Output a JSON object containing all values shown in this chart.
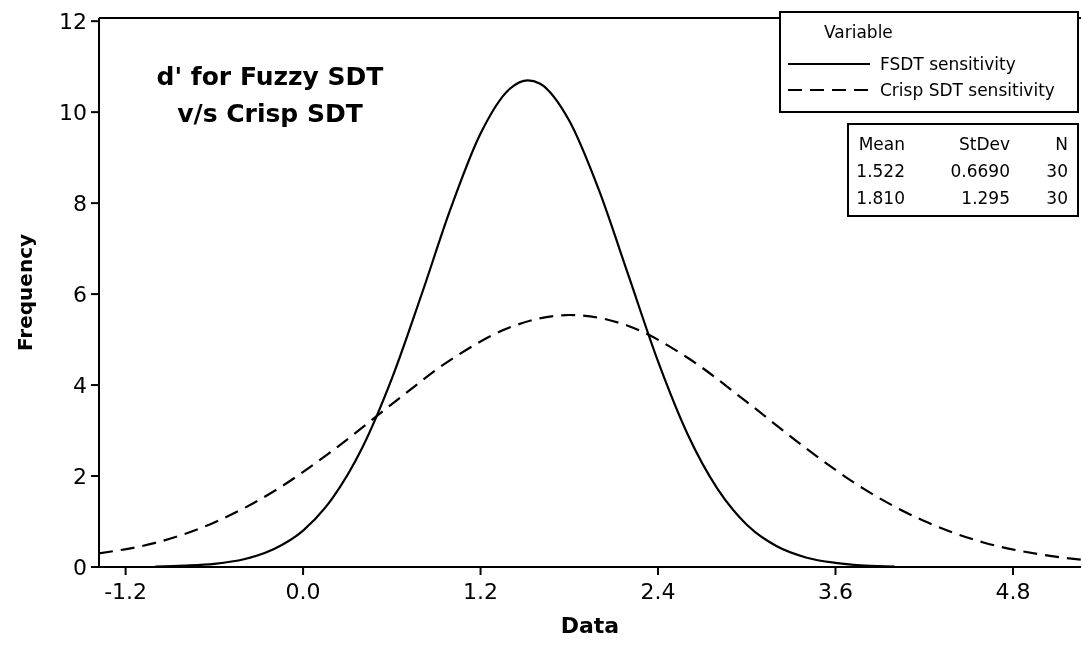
{
  "chart_data": {
    "type": "line",
    "title": "d' for Fuzzy SDT",
    "subtitle": "v/s Crisp SDT",
    "xlabel": "Data",
    "ylabel": "Frequency",
    "legend_title": "Variable",
    "legend": "top right",
    "grid": false,
    "marker": "none",
    "xlim": [
      -1.38,
      5.26
    ],
    "ylim": [
      0,
      12.07
    ],
    "xticks": [
      -1.2,
      {
        "value": 0,
        "label": "0.0"
      },
      1.2,
      2.4,
      3.6,
      4.8
    ],
    "yticks": [
      0,
      2,
      4,
      6,
      8,
      10,
      12
    ],
    "annotations": [
      "Mean StDev N",
      "1.522 0.6690 30",
      "1.810 1.295 30"
    ],
    "series": [
      {
        "name": "FSDT sensitivity",
        "color": "#000000",
        "line_style": "solid",
        "x": [
          -1.0,
          -0.8,
          -0.6,
          -0.4,
          -0.2,
          0.0,
          0.2,
          0.4,
          0.6,
          0.8,
          1.0,
          1.2,
          1.4,
          1.52,
          1.6,
          1.8,
          2.0,
          2.2,
          2.4,
          2.6,
          2.8,
          3.0,
          3.2,
          3.4,
          3.6,
          3.8,
          4.0
        ],
        "values": [
          0.01,
          0.03,
          0.07,
          0.17,
          0.39,
          0.8,
          1.52,
          2.62,
          4.14,
          5.98,
          7.9,
          9.53,
          10.52,
          10.7,
          10.63,
          9.81,
          8.29,
          6.41,
          4.52,
          2.92,
          1.73,
          0.93,
          0.46,
          0.21,
          0.09,
          0.03,
          0.01
        ]
      },
      {
        "name": "Crisp SDT sensitivity",
        "color": "#000000",
        "line_style": "dashed",
        "x": [
          -1.38,
          -1.0,
          -0.6,
          -0.2,
          0.2,
          0.6,
          1.0,
          1.4,
          1.8,
          2.2,
          2.6,
          3.0,
          3.4,
          3.8,
          4.2,
          4.6,
          5.0,
          5.26
        ],
        "values": [
          0.3,
          0.53,
          0.98,
          1.66,
          2.56,
          3.58,
          4.56,
          5.27,
          5.54,
          5.3,
          4.6,
          3.63,
          2.61,
          1.7,
          1.01,
          0.54,
          0.27,
          0.16
        ]
      }
    ]
  }
}
